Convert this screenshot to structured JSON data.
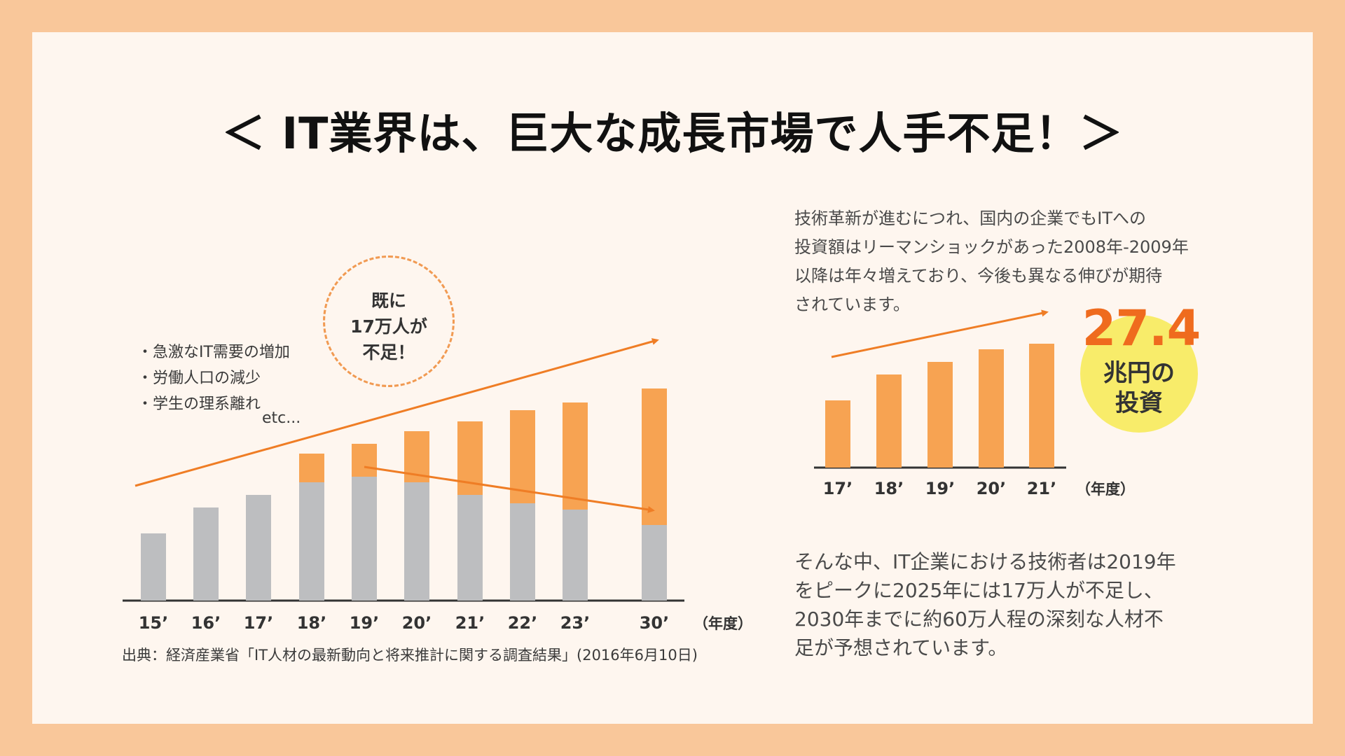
{
  "title": "＜ IT業界は、巨大な成長市場で人手不足！＞",
  "left_chart": {
    "factors": [
      "・急激なIT需要の増加",
      "・労働人口の減少",
      "・学生の理系離れ"
    ],
    "etc": "etc...",
    "circle_lines": [
      "既に",
      "17万人が",
      "不足！"
    ],
    "source": "出典：経済産業省「IT人材の最新動向と将来推計に関する調査結果」(2016年6月10日)",
    "unit_label": "（年度）"
  },
  "right_chart": {
    "description_lines": [
      "技術革新が進むにつれ、国内の企業でもITへの",
      "投資額はリーマンショックがあった2008年-2009年",
      "以降は年々増えており、今後も異なる伸びが期待",
      "されています。"
    ],
    "badge_value": "27.4",
    "badge_label_lines": [
      "兆円の",
      "投資"
    ],
    "unit_label": "（年度）"
  },
  "bottom_text_lines": [
    "そんな中、IT企業における技術者は2019年",
    "をピークに2025年には17万人が不足し、",
    "2030年までに約60万人程の深刻な人材不",
    "足が予想されています。"
  ],
  "colors": {
    "background": "#f9c79a",
    "card": "#fef6ef",
    "orange": "#f7a352",
    "gray": "#bdbec0",
    "arrow": "#ef7d25",
    "badge": "#f8ec6a"
  },
  "chart_data": [
    {
      "type": "bar",
      "categories": [
        "15’",
        "16’",
        "17’",
        "18’",
        "19’",
        "20’",
        "21’",
        "22’",
        "23’",
        "30’"
      ],
      "series": [
        {
          "values": [
            96,
            133,
            151,
            169,
            177,
            169,
            151,
            139,
            130,
            108
          ]
        },
        {
          "values": [
            0,
            0,
            0,
            41,
            47,
            73,
            105,
            133,
            153,
            195
          ]
        }
      ],
      "stacked": true,
      "ylim": [
        0,
        300
      ],
      "xlabel": "（年度）"
    },
    {
      "type": "bar",
      "categories": [
        "17’",
        "18’",
        "19’",
        "20’",
        "21’"
      ],
      "values": [
        96,
        133,
        151,
        169,
        177
      ],
      "ylim": [
        0,
        200
      ],
      "xlabel": "（年度）"
    }
  ]
}
